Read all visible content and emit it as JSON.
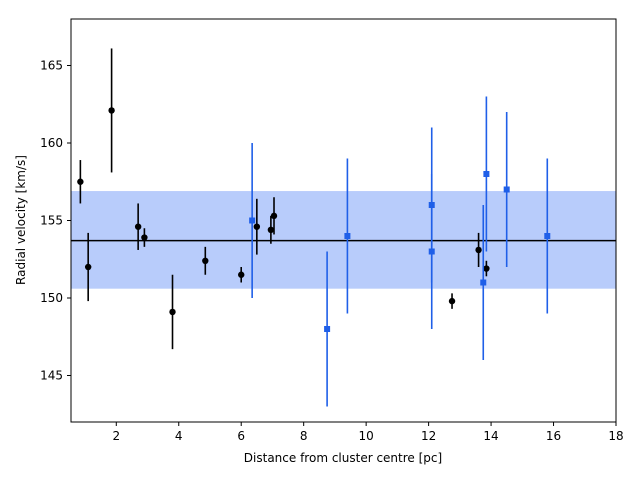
{
  "chart_data": {
    "type": "scatter",
    "xlabel": "Distance from cluster centre [pc]",
    "ylabel": "Radial velocity [km/s]",
    "xlim": [
      0.55,
      18
    ],
    "ylim": [
      142,
      168
    ],
    "xticks": [
      2,
      4,
      6,
      8,
      10,
      12,
      14,
      16,
      18
    ],
    "yticks": [
      145,
      150,
      155,
      160,
      165
    ],
    "grid": false,
    "mean_line": 153.7,
    "band": [
      150.6,
      156.9
    ],
    "colors": {
      "black": "#000000",
      "blue": "#1f5fe8",
      "band": "#b8ccfb"
    },
    "series": [
      {
        "name": "black",
        "marker": "circle",
        "color": "#000000",
        "points": [
          {
            "x": 0.85,
            "y": 157.5,
            "err": 1.4
          },
          {
            "x": 1.1,
            "y": 152.0,
            "err": 2.2
          },
          {
            "x": 1.85,
            "y": 162.1,
            "err": 4.0
          },
          {
            "x": 2.7,
            "y": 154.6,
            "err": 1.5
          },
          {
            "x": 2.9,
            "y": 153.9,
            "err": 0.6
          },
          {
            "x": 3.8,
            "y": 149.1,
            "err": 2.4
          },
          {
            "x": 4.85,
            "y": 152.4,
            "err": 0.9
          },
          {
            "x": 6.0,
            "y": 151.5,
            "err": 0.5
          },
          {
            "x": 6.5,
            "y": 154.6,
            "err": 1.8
          },
          {
            "x": 6.95,
            "y": 154.4,
            "err": 0.9
          },
          {
            "x": 7.05,
            "y": 155.3,
            "err": 1.2
          },
          {
            "x": 12.75,
            "y": 149.8,
            "err": 0.5
          },
          {
            "x": 13.6,
            "y": 153.1,
            "err": 1.1
          },
          {
            "x": 13.85,
            "y": 151.9,
            "err": 0.5
          }
        ]
      },
      {
        "name": "blue",
        "marker": "square",
        "color": "#1f5fe8",
        "points": [
          {
            "x": 6.35,
            "y": 155.0,
            "err": 5.0
          },
          {
            "x": 8.75,
            "y": 148.0,
            "err": 5.0
          },
          {
            "x": 9.4,
            "y": 154.0,
            "err": 5.0
          },
          {
            "x": 12.1,
            "y": 156.0,
            "err": 5.0
          },
          {
            "x": 12.1,
            "y": 153.0,
            "err": 5.0
          },
          {
            "x": 13.75,
            "y": 151.0,
            "err": 5.0
          },
          {
            "x": 13.85,
            "y": 158.0,
            "err": 5.0
          },
          {
            "x": 14.5,
            "y": 157.0,
            "err": 5.0
          },
          {
            "x": 15.8,
            "y": 154.0,
            "err": 5.0
          }
        ]
      }
    ]
  }
}
